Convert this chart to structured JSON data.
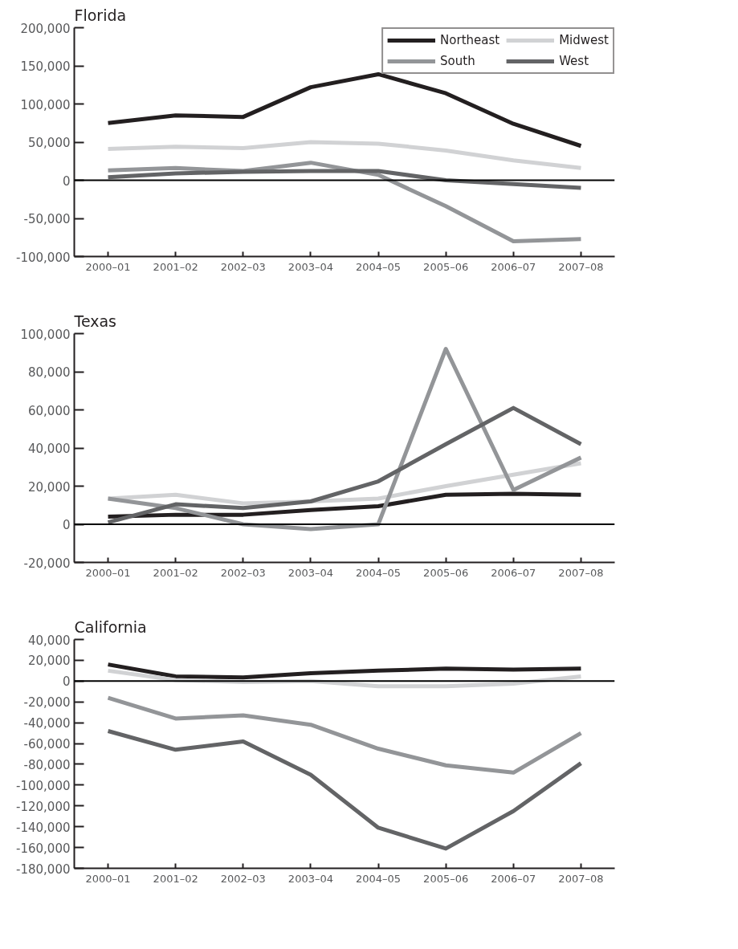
{
  "chart_data": [
    {
      "type": "line",
      "title": "Florida",
      "categories": [
        "2000–01",
        "2001–02",
        "2002–03",
        "2003–04",
        "2004–05",
        "2005–06",
        "2006–07",
        "2007–08"
      ],
      "series": [
        {
          "name": "Northeast",
          "color": "#231f20",
          "values": [
            75000,
            85000,
            83000,
            122000,
            139000,
            114000,
            74000,
            45000
          ]
        },
        {
          "name": "Midwest",
          "color": "#d1d2d4",
          "values": [
            41000,
            44000,
            42000,
            50000,
            48000,
            39000,
            26000,
            16000
          ]
        },
        {
          "name": "South",
          "color": "#939598",
          "values": [
            13000,
            16000,
            12000,
            23000,
            7000,
            -34000,
            -80000,
            -77000
          ]
        },
        {
          "name": "West",
          "color": "#636466",
          "values": [
            4000,
            9000,
            11000,
            12000,
            12000,
            0,
            -5000,
            -10000
          ]
        }
      ],
      "ylim": [
        -100000,
        200000
      ],
      "yticks": [
        {
          "value": -100000,
          "label": "-100,000"
        },
        {
          "value": -50000,
          "label": "-50,000"
        },
        {
          "value": 0,
          "label": "0"
        },
        {
          "value": 50000,
          "label": "50,000"
        },
        {
          "value": 100000,
          "label": "100,000"
        },
        {
          "value": 150000,
          "label": "150,000"
        },
        {
          "value": 200000,
          "label": "200,000"
        }
      ],
      "ref_lines": [
        {
          "axis": "y",
          "value": 0,
          "color": "#000000"
        }
      ],
      "grid": false,
      "legend": "top right",
      "line_style": "solid",
      "marker": "none"
    },
    {
      "type": "line",
      "title": "Texas",
      "categories": [
        "2000–01",
        "2001–02",
        "2002–03",
        "2003–04",
        "2004–05",
        "2005–06",
        "2006–07",
        "2007–08"
      ],
      "series": [
        {
          "color": "#231f20",
          "values": [
            4000,
            5000,
            5000,
            7500,
            9500,
            15500,
            16000,
            15500
          ]
        },
        {
          "color": "#d1d2d4",
          "values": [
            13500,
            15500,
            11000,
            12000,
            13500,
            20000,
            26000,
            32000
          ]
        },
        {
          "color": "#939598",
          "values": [
            13500,
            8500,
            0,
            -2500,
            0,
            92000,
            18000,
            35000
          ]
        },
        {
          "color": "#636466",
          "values": [
            1000,
            10500,
            8500,
            12000,
            22500,
            42000,
            61000,
            42000
          ]
        }
      ],
      "ylim": [
        -20000,
        100000
      ],
      "yticks": [
        {
          "value": -20000,
          "label": "-20,000"
        },
        {
          "value": 0,
          "label": "0"
        },
        {
          "value": 20000,
          "label": "20,000"
        },
        {
          "value": 40000,
          "label": "40,000"
        },
        {
          "value": 60000,
          "label": "60,000"
        },
        {
          "value": 80000,
          "label": "80,000"
        },
        {
          "value": 100000,
          "label": "100,000"
        }
      ],
      "ref_lines": [
        {
          "axis": "y",
          "value": 0,
          "color": "#000000"
        }
      ],
      "grid": false,
      "line_style": "solid",
      "marker": "none"
    },
    {
      "type": "line",
      "title": "California",
      "categories": [
        "2000–01",
        "2001–02",
        "2002–03",
        "2003–04",
        "2004–05",
        "2005–06",
        "2006–07",
        "2007–08"
      ],
      "series": [
        {
          "color": "#231f20",
          "values": [
            16000,
            4500,
            3500,
            7500,
            10000,
            12000,
            11000,
            12000
          ]
        },
        {
          "color": "#d1d2d4",
          "values": [
            10000,
            1000,
            -1000,
            0,
            -5000,
            -5000,
            -2500,
            4500
          ]
        },
        {
          "color": "#939598",
          "values": [
            -16000,
            -36000,
            -33000,
            -42000,
            -65000,
            -81000,
            -88000,
            -50000
          ]
        },
        {
          "color": "#636466",
          "values": [
            -48000,
            -66000,
            -58000,
            -90000,
            -141000,
            -161000,
            -125000,
            -79000
          ]
        }
      ],
      "ylim": [
        -180000,
        40000
      ],
      "yticks": [
        {
          "value": -180000,
          "label": "-180,000"
        },
        {
          "value": -160000,
          "label": "-160,000"
        },
        {
          "value": -140000,
          "label": "-140,000"
        },
        {
          "value": -120000,
          "label": "-120,000"
        },
        {
          "value": -100000,
          "label": "-100,000"
        },
        {
          "value": -80000,
          "label": "-80,000"
        },
        {
          "value": -60000,
          "label": "-60,000"
        },
        {
          "value": -40000,
          "label": "-40,000"
        },
        {
          "value": -20000,
          "label": "-20,000"
        },
        {
          "value": 0,
          "label": "0"
        },
        {
          "value": 20000,
          "label": "20,000"
        },
        {
          "value": 40000,
          "label": "40,000"
        }
      ],
      "ref_lines": [
        {
          "axis": "y",
          "value": 0,
          "color": "#000000"
        }
      ],
      "grid": false,
      "line_style": "solid",
      "marker": "none"
    }
  ]
}
